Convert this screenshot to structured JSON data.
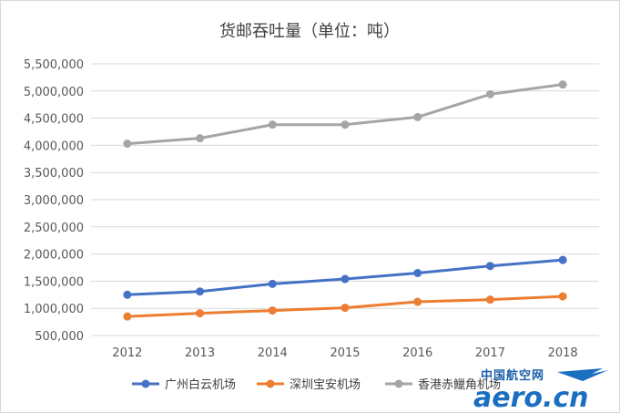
{
  "chart_data": {
    "type": "line",
    "title": "货邮吞吐量（单位：吨）",
    "categories": [
      "2012",
      "2013",
      "2014",
      "2015",
      "2016",
      "2017",
      "2018"
    ],
    "ylim": [
      500000,
      5500000
    ],
    "yticks": [
      500000,
      1000000,
      1500000,
      2000000,
      2500000,
      3000000,
      3500000,
      4000000,
      4500000,
      5000000,
      5500000
    ],
    "ytick_labels": [
      "500,000",
      "1,000,000",
      "1,500,000",
      "2,000,000",
      "2,500,000",
      "3,000,000",
      "3,500,000",
      "4,000,000",
      "4,500,000",
      "5,000,000",
      "5,500,000"
    ],
    "grid": true,
    "legend_position": "bottom",
    "series": [
      {
        "name": "广州白云机场",
        "color": "#4472c4",
        "values": [
          1250000,
          1310000,
          1450000,
          1540000,
          1650000,
          1780000,
          1890000
        ]
      },
      {
        "name": "深圳宝安机场",
        "color": "#ed7d31",
        "values": [
          850000,
          910000,
          960000,
          1010000,
          1120000,
          1160000,
          1220000
        ]
      },
      {
        "name": "香港赤鱲角机场",
        "color": "#a5a5a5",
        "values": [
          4030000,
          4130000,
          4380000,
          4380000,
          4520000,
          4940000,
          5120000
        ]
      }
    ]
  },
  "watermark": {
    "chinese": "中国航空网",
    "latin": "aero.cn",
    "color": "#1a6fc0"
  }
}
